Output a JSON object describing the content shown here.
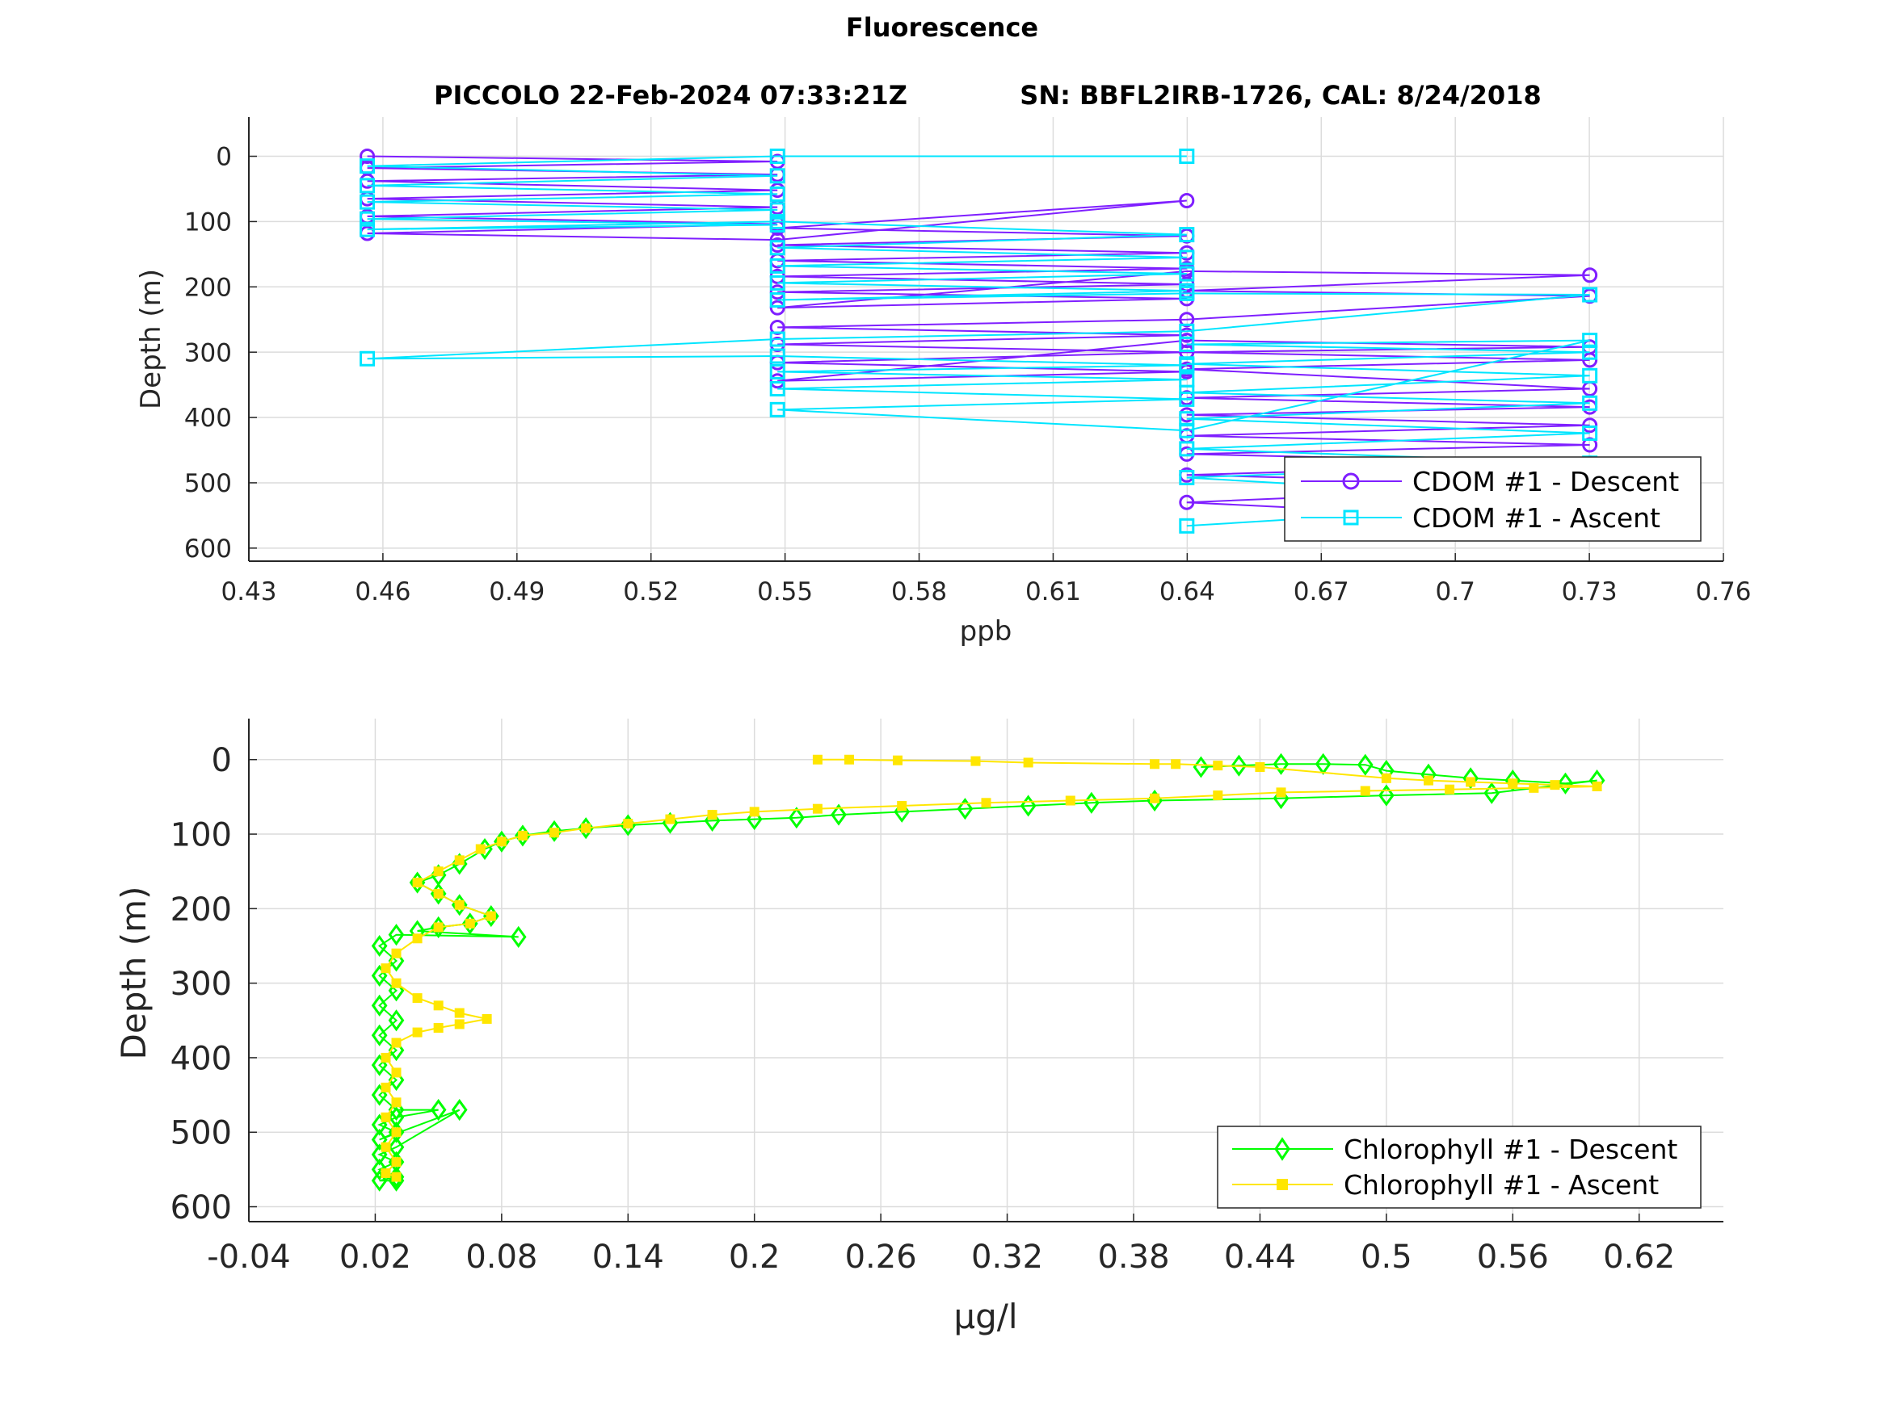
{
  "figure": {
    "title": "Fluorescence",
    "subtitle_left": "PICCOLO 22-Feb-2024 07:33:21Z",
    "subtitle_right": "SN: BBFL2IRB-1726, CAL: 8/24/2018"
  },
  "chart_data": [
    {
      "type": "line",
      "title": "PICCOLO 22-Feb-2024 07:33:21Z        SN: BBFL2IRB-1726, CAL: 8/24/2018",
      "xlabel": "ppb",
      "ylabel": "Depth (m)",
      "xlim": [
        0.43,
        0.76
      ],
      "ylim": [
        -60,
        620
      ],
      "y_reversed": true,
      "grid": true,
      "legend_position": "bottom-right",
      "xticks": [
        "0.43",
        "0.46",
        "0.49",
        "0.52",
        "0.55",
        "0.58",
        "0.61",
        "0.64",
        "0.67",
        "0.7",
        "0.73",
        "0.76"
      ],
      "yticks": [
        "0",
        "100",
        "200",
        "300",
        "400",
        "500",
        "600"
      ],
      "series": [
        {
          "name": "CDOM #1 - Descent",
          "color": "#7f1fff",
          "marker": "circle",
          "x": [
            0.4565,
            0.5483,
            0.4565,
            0.5483,
            0.4565,
            0.5483,
            0.4565,
            0.5483,
            0.4565,
            0.5483,
            0.4565,
            0.5483,
            0.6399,
            0.5483,
            0.6399,
            0.5483,
            0.6399,
            0.5483,
            0.6399,
            0.5483,
            0.6399,
            0.5483,
            0.6399,
            0.5483,
            0.6399,
            0.7301,
            0.6399,
            0.7301,
            0.6399,
            0.5483,
            0.6399,
            0.5483,
            0.6399,
            0.5483,
            0.6399,
            0.5483,
            0.6399,
            0.7301,
            0.6399,
            0.7301,
            0.6399,
            0.7301,
            0.6399,
            0.7301,
            0.6399,
            0.7301,
            0.6399,
            0.7301,
            0.6399,
            0.7301,
            0.6399,
            0.7301,
            0.6399,
            0.7301
          ],
          "y": [
            0,
            8,
            18,
            28,
            38,
            52,
            65,
            78,
            92,
            104,
            118,
            128,
            68,
            110,
            122,
            136,
            148,
            160,
            172,
            184,
            196,
            208,
            218,
            232,
            176,
            182,
            206,
            214,
            250,
            262,
            274,
            288,
            300,
            316,
            330,
            344,
            282,
            292,
            300,
            312,
            326,
            356,
            370,
            384,
            396,
            412,
            428,
            442,
            456,
            470,
            488,
            504,
            530,
            560
          ]
        },
        {
          "name": "CDOM #1 - Ascent",
          "color": "#00e5ff",
          "marker": "square",
          "x": [
            0.6399,
            0.5483,
            0.4565,
            0.5483,
            0.4565,
            0.5483,
            0.4565,
            0.5483,
            0.4565,
            0.5483,
            0.4565,
            0.5483,
            0.6399,
            0.5483,
            0.6399,
            0.5483,
            0.6399,
            0.5483,
            0.6399,
            0.5483,
            0.6399,
            0.7301,
            0.6399,
            0.5483,
            0.4565,
            0.5483,
            0.6399,
            0.5483,
            0.6399,
            0.5483,
            0.6399,
            0.5483,
            0.6399,
            0.7301,
            0.6399,
            0.7301,
            0.6399,
            0.7301,
            0.6399,
            0.7301,
            0.6399,
            0.7301,
            0.6399,
            0.7301,
            0.6399,
            0.7301,
            0.6399
          ],
          "y": [
            0,
            0,
            15,
            30,
            45,
            58,
            70,
            82,
            96,
            105,
            112,
            100,
            120,
            140,
            155,
            168,
            180,
            194,
            206,
            220,
            210,
            212,
            268,
            280,
            310,
            306,
            320,
            330,
            342,
            356,
            372,
            388,
            420,
            282,
            288,
            300,
            318,
            336,
            362,
            378,
            402,
            424,
            448,
            470,
            492,
            528,
            566
          ]
        }
      ]
    },
    {
      "type": "line",
      "title": "",
      "xlabel": "μg/l",
      "ylabel": "Depth (m)",
      "xlim": [
        -0.04,
        0.66
      ],
      "ylim": [
        -55,
        620
      ],
      "y_reversed": true,
      "grid": true,
      "legend_position": "bottom-right",
      "xticks": [
        "-0.04",
        "0.02",
        "0.08",
        "0.14",
        "0.2",
        "0.26",
        "0.32",
        "0.38",
        "0.44",
        "0.5",
        "0.56",
        "0.62"
      ],
      "yticks": [
        "0",
        "100",
        "200",
        "300",
        "400",
        "500",
        "600"
      ],
      "series": [
        {
          "name": "Chlorophyll #1 - Descent",
          "color": "#00ff00",
          "marker": "diamond",
          "x": [
            0.412,
            0.43,
            0.45,
            0.47,
            0.49,
            0.5,
            0.52,
            0.54,
            0.56,
            0.585,
            0.6,
            0.55,
            0.5,
            0.45,
            0.39,
            0.36,
            0.33,
            0.3,
            0.27,
            0.24,
            0.22,
            0.2,
            0.18,
            0.16,
            0.14,
            0.12,
            0.105,
            0.09,
            0.08,
            0.072,
            0.06,
            0.05,
            0.04,
            0.05,
            0.06,
            0.075,
            0.065,
            0.05,
            0.04,
            0.088,
            0.03,
            0.022,
            0.03,
            0.022,
            0.03,
            0.022,
            0.03,
            0.022,
            0.03,
            0.022,
            0.03,
            0.022,
            0.03,
            0.05,
            0.03,
            0.022,
            0.03,
            0.022,
            0.06,
            0.03,
            0.022,
            0.03,
            0.022,
            0.03,
            0.022,
            0.03
          ],
          "y": [
            10,
            8,
            6,
            6,
            7,
            15,
            20,
            25,
            28,
            32,
            28,
            45,
            48,
            52,
            55,
            58,
            62,
            66,
            70,
            74,
            78,
            80,
            82,
            85,
            88,
            92,
            96,
            102,
            110,
            120,
            140,
            155,
            165,
            180,
            195,
            210,
            220,
            225,
            230,
            238,
            235,
            250,
            270,
            290,
            310,
            330,
            350,
            370,
            390,
            410,
            430,
            450,
            470,
            470,
            480,
            490,
            500,
            510,
            470,
            520,
            530,
            540,
            550,
            560,
            565,
            565
          ]
        },
        {
          "name": "Chlorophyll #1 - Ascent",
          "color": "#ffe600",
          "marker": "asterisk",
          "x": [
            0.23,
            0.245,
            0.268,
            0.305,
            0.33,
            0.39,
            0.4,
            0.42,
            0.44,
            0.5,
            0.52,
            0.54,
            0.56,
            0.58,
            0.6,
            0.57,
            0.53,
            0.49,
            0.45,
            0.42,
            0.39,
            0.35,
            0.31,
            0.27,
            0.23,
            0.2,
            0.18,
            0.16,
            0.14,
            0.12,
            0.105,
            0.09,
            0.08,
            0.07,
            0.06,
            0.05,
            0.04,
            0.05,
            0.06,
            0.075,
            0.065,
            0.05,
            0.04,
            0.03,
            0.025,
            0.03,
            0.04,
            0.05,
            0.06,
            0.073,
            0.06,
            0.05,
            0.04,
            0.03,
            0.025,
            0.03,
            0.025,
            0.03,
            0.025,
            0.03,
            0.025,
            0.03,
            0.025,
            0.03
          ],
          "y": [
            0,
            0,
            1,
            2,
            4,
            6,
            6,
            8,
            10,
            25,
            28,
            30,
            32,
            34,
            36,
            38,
            40,
            42,
            44,
            48,
            52,
            55,
            58,
            62,
            66,
            70,
            74,
            80,
            86,
            92,
            98,
            102,
            110,
            120,
            135,
            150,
            165,
            180,
            195,
            210,
            220,
            225,
            240,
            260,
            280,
            300,
            320,
            330,
            340,
            348,
            355,
            360,
            366,
            380,
            400,
            420,
            440,
            460,
            480,
            500,
            520,
            540,
            555,
            560
          ]
        }
      ]
    }
  ]
}
